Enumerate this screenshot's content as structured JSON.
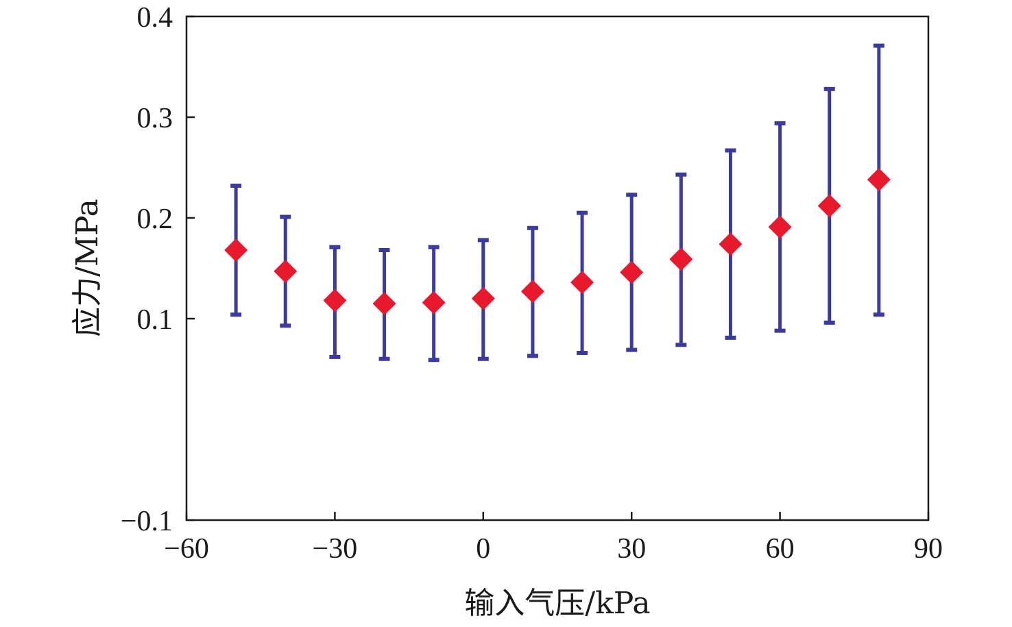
{
  "chart_data": {
    "type": "scatter",
    "title": "",
    "xlabel": "输入气压/kPa",
    "ylabel": "应力/MPa",
    "xlim": [
      -60,
      90
    ],
    "ylim": [
      -0.1,
      0.4
    ],
    "x_ticks": [
      -60,
      -30,
      0,
      30,
      60,
      90
    ],
    "x_tick_labels": [
      "−60",
      "−30",
      "0",
      "30",
      "60",
      "90"
    ],
    "y_ticks": [
      -0.1,
      0.1,
      0.2,
      0.3,
      0.4
    ],
    "y_tick_labels": [
      "−0.1",
      "0.1",
      "0.2",
      "0.3",
      "0.4"
    ],
    "grid": false,
    "marker": "diamond",
    "marker_color": "#e8192c",
    "errorbar_color": "#3a3aa0",
    "series": [
      {
        "x": [
          -50,
          -40,
          -30,
          -20,
          -10,
          0,
          10,
          20,
          30,
          40,
          50,
          60,
          70,
          80
        ],
        "y": [
          0.168,
          0.147,
          0.118,
          0.115,
          0.116,
          0.12,
          0.127,
          0.136,
          0.146,
          0.159,
          0.174,
          0.191,
          0.212,
          0.238
        ],
        "y_low": [
          0.104,
          0.093,
          0.062,
          0.06,
          0.059,
          0.06,
          0.063,
          0.066,
          0.069,
          0.074,
          0.081,
          0.088,
          0.096,
          0.104
        ],
        "y_high": [
          0.232,
          0.201,
          0.171,
          0.168,
          0.171,
          0.178,
          0.19,
          0.205,
          0.223,
          0.243,
          0.267,
          0.294,
          0.328,
          0.371
        ]
      }
    ]
  }
}
